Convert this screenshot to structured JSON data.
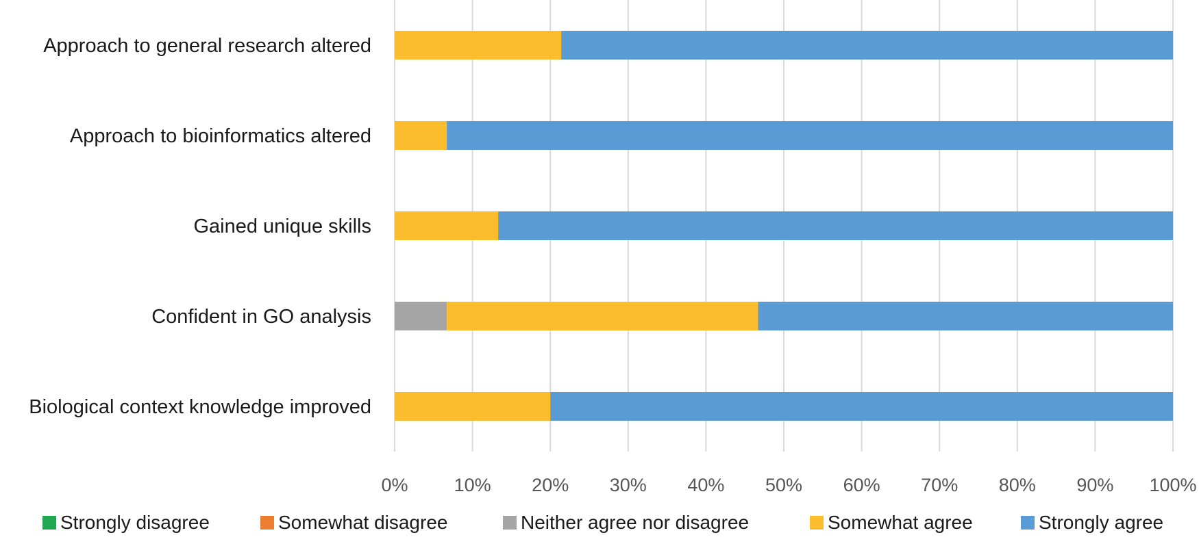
{
  "chart_data": {
    "type": "bar",
    "orientation": "horizontal",
    "stacked": true,
    "percent_stacked": true,
    "title": "",
    "xlabel": "",
    "ylabel": "",
    "xlim": [
      0,
      100
    ],
    "grid": true,
    "legend_position": "bottom",
    "categories": [
      "Approach to general research altered",
      "Approach to bioinformatics altered",
      "Gained unique skills",
      "Confident in GO analysis",
      "Biological context knowledge improved"
    ],
    "x_ticks": [
      "0%",
      "10%",
      "20%",
      "30%",
      "40%",
      "50%",
      "60%",
      "70%",
      "80%",
      "90%",
      "100%"
    ],
    "series": [
      {
        "name": "Strongly disagree",
        "color": "#1fa84f",
        "values": [
          0,
          0,
          0,
          0,
          0
        ]
      },
      {
        "name": "Somewhat disagree",
        "color": "#ed7d31",
        "values": [
          0,
          0,
          0,
          0,
          0
        ]
      },
      {
        "name": "Neither agree nor disagree",
        "color": "#a5a5a5",
        "values": [
          0,
          0,
          0,
          6.7,
          0
        ]
      },
      {
        "name": "Somewhat agree",
        "color": "#fbbc2e",
        "values": [
          21.4,
          6.7,
          13.3,
          40,
          20
        ]
      },
      {
        "name": "Strongly agree",
        "color": "#5b9bd5",
        "values": [
          78.6,
          93.3,
          86.7,
          53.3,
          80
        ]
      }
    ]
  }
}
